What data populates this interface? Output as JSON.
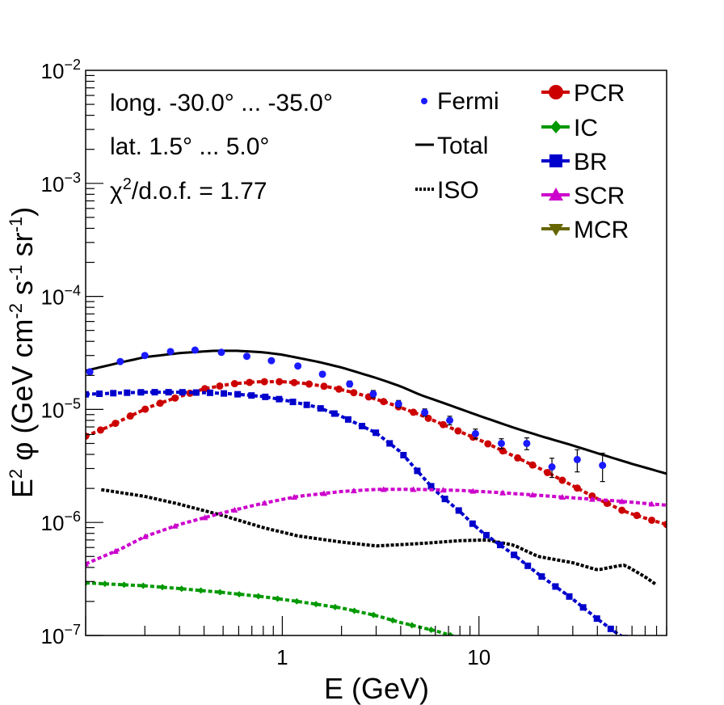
{
  "chart_data": {
    "type": "line",
    "xscale": "log",
    "yscale": "log",
    "xlim": [
      0.1,
      90
    ],
    "ylim": [
      1e-07,
      0.01
    ],
    "xlabel": "E (GeV)",
    "ylabel": {
      "base": "E",
      "sup1": "2",
      "phi": " φ (GeV cm",
      "sup2": "-2",
      "mid": " s",
      "sup3": "-1",
      "mid2": " sr",
      "sup4": "-1",
      "end": ")"
    },
    "x_tick_labels": [
      {
        "value": 1,
        "text": "1"
      },
      {
        "value": 10,
        "text": "10"
      }
    ],
    "y_tick_labels": [
      {
        "value": 1e-07,
        "base": "10",
        "exp": "−7"
      },
      {
        "value": 1e-06,
        "base": "10",
        "exp": "−6"
      },
      {
        "value": 1e-05,
        "base": "10",
        "exp": "−5"
      },
      {
        "value": 0.0001,
        "base": "10",
        "exp": "−4"
      },
      {
        "value": 0.001,
        "base": "10",
        "exp": "−3"
      },
      {
        "value": 0.01,
        "base": "10",
        "exp": "−2"
      }
    ],
    "annotations": {
      "longitude": "long. -30.0° ... -35.0°",
      "latitude": "lat. 1.5° ... 5.0°",
      "chi2": {
        "chi": "χ",
        "sup": "2",
        "rest": "/d.o.f. = 1.77"
      }
    },
    "legend_left": [
      {
        "name": "Fermi",
        "style": "dot",
        "color": "#1a1aff"
      },
      {
        "name": "Total",
        "style": "solid",
        "color": "#000000"
      },
      {
        "name": "ISO",
        "style": "dotted",
        "color": "#000000"
      }
    ],
    "legend_right": [
      {
        "name": "PCR",
        "marker": "circle",
        "color": "#cc0000"
      },
      {
        "name": "IC",
        "marker": "diamond",
        "color": "#009900"
      },
      {
        "name": "BR",
        "marker": "square",
        "color": "#0000cc"
      },
      {
        "name": "SCR",
        "marker": "triangle-up",
        "color": "#cc00cc"
      },
      {
        "name": "MCR",
        "marker": "triangle-down",
        "color": "#666600"
      }
    ],
    "series": [
      {
        "name": "Total",
        "color": "#000000",
        "style": "solid",
        "points": [
          [
            0.1,
            2.2e-05
          ],
          [
            0.15,
            2.6e-05
          ],
          [
            0.2,
            2.9e-05
          ],
          [
            0.3,
            3.15e-05
          ],
          [
            0.45,
            3.3e-05
          ],
          [
            0.6,
            3.3e-05
          ],
          [
            0.8,
            3.2e-05
          ],
          [
            1.0,
            3.05e-05
          ],
          [
            1.5,
            2.65e-05
          ],
          [
            2,
            2.35e-05
          ],
          [
            3,
            1.9e-05
          ],
          [
            4,
            1.6e-05
          ],
          [
            5,
            1.35e-05
          ],
          [
            7,
            1.1e-05
          ],
          [
            10,
            8.8e-06
          ],
          [
            15,
            6.9e-06
          ],
          [
            20,
            5.9e-06
          ],
          [
            30,
            4.8e-06
          ],
          [
            40,
            4.1e-06
          ],
          [
            60,
            3.3e-06
          ],
          [
            90,
            2.7e-06
          ]
        ]
      },
      {
        "name": "ISO",
        "color": "#000000",
        "style": "dotted",
        "points": [
          [
            0.12,
            1.95e-06
          ],
          [
            0.2,
            1.7e-06
          ],
          [
            0.3,
            1.45e-06
          ],
          [
            0.5,
            1.15e-06
          ],
          [
            0.8,
            9e-07
          ],
          [
            1.2,
            7.6e-07
          ],
          [
            2,
            6.7e-07
          ],
          [
            3,
            6.2e-07
          ],
          [
            5,
            6.5e-07
          ],
          [
            8,
            6.9e-07
          ],
          [
            11,
            7e-07
          ],
          [
            15,
            6.3e-07
          ],
          [
            20,
            5e-07
          ],
          [
            30,
            4.4e-07
          ],
          [
            40,
            3.8e-07
          ],
          [
            50,
            4.1e-07
          ],
          [
            55,
            4.2e-07
          ],
          [
            70,
            3.3e-07
          ],
          [
            80,
            2.8e-07
          ]
        ]
      },
      {
        "name": "PCR",
        "color": "#cc0000",
        "style": "markers",
        "marker": "circle",
        "points": [
          [
            0.1,
            5.8e-06
          ],
          [
            0.13,
            7e-06
          ],
          [
            0.17,
            8.8e-06
          ],
          [
            0.22,
            1.08e-05
          ],
          [
            0.3,
            1.3e-05
          ],
          [
            0.4,
            1.52e-05
          ],
          [
            0.55,
            1.68e-05
          ],
          [
            0.75,
            1.76e-05
          ],
          [
            1.0,
            1.76e-05
          ],
          [
            1.3,
            1.7e-05
          ],
          [
            1.8,
            1.56e-05
          ],
          [
            2.5,
            1.36e-05
          ],
          [
            3.5,
            1.13e-05
          ],
          [
            5,
            9e-06
          ],
          [
            7,
            7e-06
          ],
          [
            10,
            5.4e-06
          ],
          [
            14,
            4.1e-06
          ],
          [
            20,
            3.05e-06
          ],
          [
            28,
            2.25e-06
          ],
          [
            40,
            1.62e-06
          ],
          [
            55,
            1.25e-06
          ],
          [
            75,
            1.05e-06
          ],
          [
            90,
            9.6e-07
          ]
        ]
      },
      {
        "name": "BR",
        "color": "#0000cc",
        "style": "markers",
        "marker": "square",
        "points": [
          [
            0.1,
            1.36e-05
          ],
          [
            0.15,
            1.4e-05
          ],
          [
            0.2,
            1.42e-05
          ],
          [
            0.3,
            1.42e-05
          ],
          [
            0.45,
            1.4e-05
          ],
          [
            0.6,
            1.36e-05
          ],
          [
            0.8,
            1.3e-05
          ],
          [
            1.0,
            1.22e-05
          ],
          [
            1.5,
            1.05e-05
          ],
          [
            2,
            8.7e-06
          ],
          [
            3,
            6.2e-06
          ],
          [
            4,
            4.2e-06
          ],
          [
            5,
            2.7e-06
          ],
          [
            6,
            1.9e-06
          ],
          [
            8,
            1.25e-06
          ],
          [
            10,
            8.6e-07
          ],
          [
            15,
            5.2e-07
          ],
          [
            20,
            3.5e-07
          ],
          [
            30,
            2.1e-07
          ],
          [
            40,
            1.4e-07
          ],
          [
            50,
            1.05e-07
          ],
          [
            55,
            9.5e-08
          ]
        ]
      },
      {
        "name": "SCR",
        "color": "#cc00cc",
        "style": "markers",
        "marker": "triangle-up",
        "points": [
          [
            0.1,
            4.3e-07
          ],
          [
            0.15,
            5.8e-07
          ],
          [
            0.2,
            7.5e-07
          ],
          [
            0.3,
            9.6e-07
          ],
          [
            0.5,
            1.22e-06
          ],
          [
            0.8,
            1.48e-06
          ],
          [
            1.2,
            1.7e-06
          ],
          [
            2,
            1.88e-06
          ],
          [
            3,
            1.96e-06
          ],
          [
            5,
            1.96e-06
          ],
          [
            8,
            1.92e-06
          ],
          [
            12,
            1.85e-06
          ],
          [
            20,
            1.74e-06
          ],
          [
            30,
            1.65e-06
          ],
          [
            50,
            1.55e-06
          ],
          [
            90,
            1.42e-06
          ]
        ]
      },
      {
        "name": "IC",
        "color": "#009900",
        "style": "markers",
        "marker": "diamond",
        "points": [
          [
            0.1,
            2.92e-07
          ],
          [
            0.2,
            2.75e-07
          ],
          [
            0.3,
            2.6e-07
          ],
          [
            0.5,
            2.4e-07
          ],
          [
            0.8,
            2.2e-07
          ],
          [
            1.2,
            2e-07
          ],
          [
            2,
            1.75e-07
          ],
          [
            3,
            1.5e-07
          ],
          [
            4,
            1.3e-07
          ],
          [
            6,
            1.1e-07
          ],
          [
            8,
            9.5e-08
          ]
        ]
      },
      {
        "name": "Fermi",
        "color": "#1a1aff",
        "style": "errorpoints",
        "points": [
          [
            0.105,
            2.15e-05,
            1e-06
          ],
          [
            0.15,
            2.65e-05,
            1e-06
          ],
          [
            0.2,
            3e-05,
            1e-06
          ],
          [
            0.27,
            3.25e-05,
            1e-06
          ],
          [
            0.36,
            3.35e-05,
            1e-06
          ],
          [
            0.49,
            3.2e-05,
            1e-06
          ],
          [
            0.66,
            2.95e-05,
            1e-06
          ],
          [
            0.88,
            2.7e-05,
            1e-06
          ],
          [
            1.2,
            2.42e-05,
            1e-06
          ],
          [
            1.6,
            2.05e-05,
            1e-06
          ],
          [
            2.2,
            1.68e-05,
            1e-06
          ],
          [
            2.9,
            1.37e-05,
            1e-06
          ],
          [
            3.9,
            1.12e-05,
            8e-07
          ],
          [
            5.3,
            9.4e-06,
            7e-07
          ],
          [
            7.1,
            8e-06,
            7e-07
          ],
          [
            9.6,
            6.1e-06,
            6e-07
          ],
          [
            13,
            5e-06,
            5e-07
          ],
          [
            17.5,
            5e-06,
            6e-07
          ],
          [
            23.5,
            3.1e-06,
            6e-07
          ],
          [
            31.6,
            3.6e-06,
            8e-07
          ],
          [
            42.5,
            3.2e-06,
            9e-07
          ]
        ]
      }
    ]
  }
}
